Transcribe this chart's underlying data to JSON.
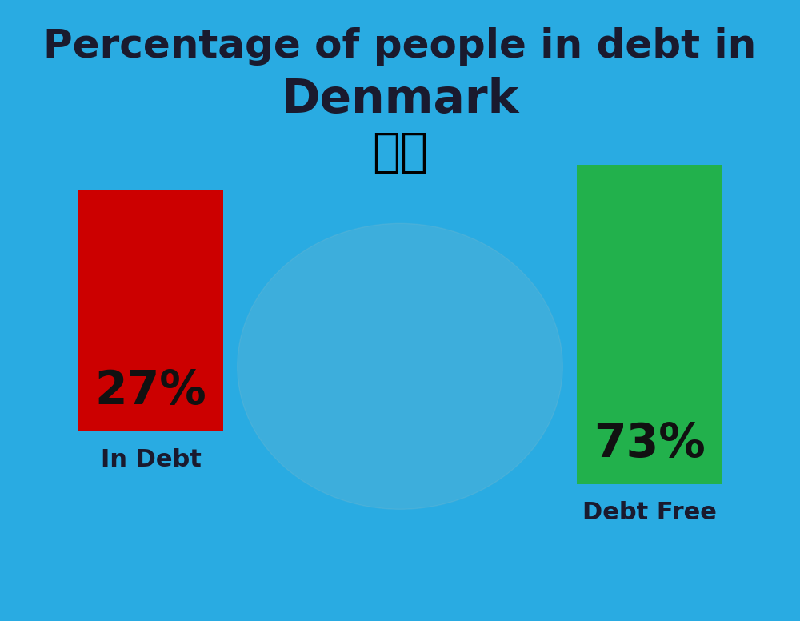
{
  "title_line1": "Percentage of people in debt in",
  "title_line2": "Denmark",
  "background_color": "#29ABE2",
  "bar1_value": 27,
  "bar1_label": "27%",
  "bar1_color": "#CC0000",
  "bar1_caption": "In Debt",
  "bar2_value": 73,
  "bar2_label": "73%",
  "bar2_color": "#22B14C",
  "bar2_caption": "Debt Free",
  "title_color": "#1a1a2e",
  "label_color": "#111111",
  "caption_color": "#1a1a2e",
  "title_fontsize": 36,
  "title2_fontsize": 42,
  "bar_label_fontsize": 42,
  "caption_fontsize": 22
}
